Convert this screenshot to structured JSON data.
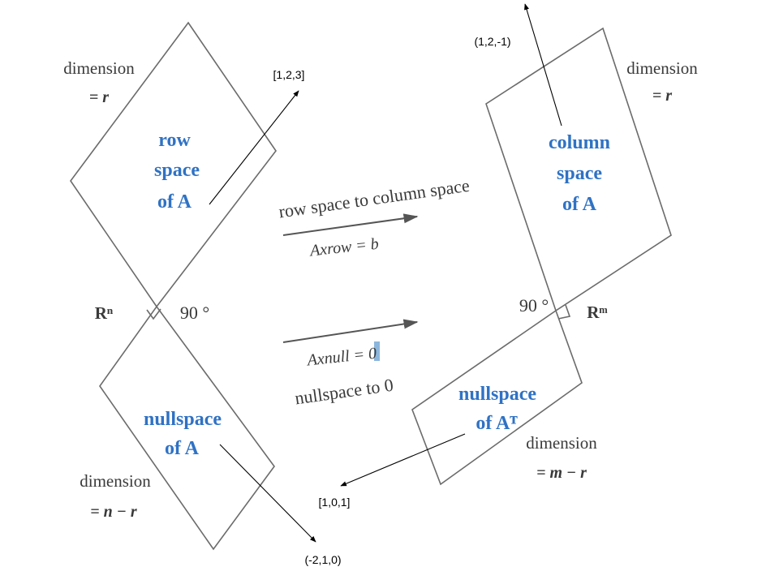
{
  "left": {
    "dimension_label": "dimension",
    "dimension_value": "= r",
    "row_space": [
      "row",
      "space",
      "of A"
    ],
    "nullspace": [
      "nullspace",
      "of A"
    ],
    "null_dimension_label": "dimension",
    "null_dimension_value": "= n − r",
    "ambient": "Rⁿ",
    "angle": "90 °"
  },
  "right": {
    "dimension_label": "dimension",
    "dimension_value": "= r",
    "column_space": [
      "column",
      "space",
      "of A"
    ],
    "left_nullspace": [
      "nullspace",
      "of Aᵀ"
    ],
    "null_dimension_label": "dimension",
    "null_dimension_value": "= m − r",
    "ambient": "Rᵐ",
    "angle": "90 °"
  },
  "middle": {
    "top_caption": "row space to column space",
    "top_equation": "Axrow = b",
    "bottom_equation": "Axnull = 0",
    "bottom_caption": "nullspace to 0"
  },
  "vectors": {
    "row_vector": "[1,2,3]",
    "column_vector": "(1,2,-1)",
    "null_vector": "(-2,1,0)",
    "left_null_vector": "[1,0,1]"
  },
  "colors": {
    "accent_blue": "#2f72c4",
    "text_dark": "#3a3a3a",
    "outline": "#6b6b6b"
  }
}
